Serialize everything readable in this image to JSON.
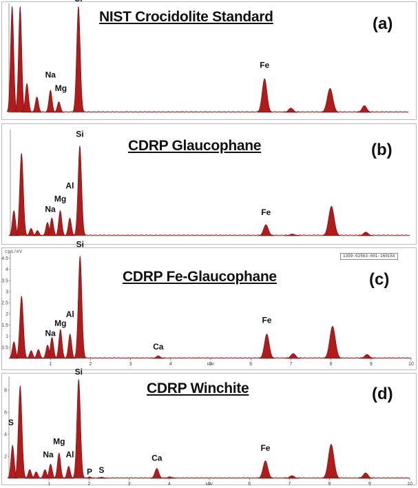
{
  "chart_data": [
    {
      "type": "area",
      "title": "NIST Crocidolite Standard",
      "panel_label": "(a)",
      "xlabel": "",
      "ylabel": "",
      "xlim": [
        0,
        10
      ],
      "ylim": [
        0,
        11
      ],
      "fill_color": "#b01c1c",
      "x_ticks": [],
      "y_ticks": [],
      "peaks": [
        {
          "keV": 0.08,
          "height": 11.0,
          "width": 0.04
        },
        {
          "keV": 0.28,
          "height": 11.0,
          "width": 0.04
        },
        {
          "keV": 0.45,
          "height": 3.0,
          "width": 0.04
        },
        {
          "keV": 0.7,
          "height": 1.6,
          "width": 0.04
        },
        {
          "keV": 1.04,
          "height": 2.3,
          "width": 0.04
        },
        {
          "keV": 1.25,
          "height": 1.1,
          "width": 0.04
        },
        {
          "keV": 1.74,
          "height": 11.0,
          "width": 0.045
        },
        {
          "keV": 6.4,
          "height": 3.5,
          "width": 0.06
        },
        {
          "keV": 7.06,
          "height": 0.45,
          "width": 0.06
        },
        {
          "keV": 8.04,
          "height": 2.5,
          "width": 0.07
        },
        {
          "keV": 8.9,
          "height": 0.7,
          "width": 0.06
        }
      ],
      "element_labels": [
        {
          "text": "Si",
          "keV": 1.74,
          "y": 11.5
        },
        {
          "text": "Na",
          "keV": 1.04,
          "y": 3.6
        },
        {
          "text": "Mg",
          "keV": 1.3,
          "y": 2.2
        },
        {
          "text": "Fe",
          "keV": 6.4,
          "y": 4.6
        }
      ]
    },
    {
      "type": "area",
      "title": "CDRP Glaucophane",
      "panel_label": "(b)",
      "xlabel": "",
      "ylabel": "",
      "xlim": [
        0,
        10
      ],
      "ylim": [
        0,
        7
      ],
      "fill_color": "#b01c1c",
      "x_ticks": [],
      "y_ticks": [],
      "peaks": [
        {
          "keV": 0.09,
          "height": 1.7,
          "width": 0.04
        },
        {
          "keV": 0.28,
          "height": 5.6,
          "width": 0.045
        },
        {
          "keV": 0.52,
          "height": 0.5,
          "width": 0.04
        },
        {
          "keV": 0.68,
          "height": 0.35,
          "width": 0.04
        },
        {
          "keV": 0.93,
          "height": 0.9,
          "width": 0.04
        },
        {
          "keV": 1.04,
          "height": 1.2,
          "width": 0.04
        },
        {
          "keV": 1.25,
          "height": 1.7,
          "width": 0.04
        },
        {
          "keV": 1.49,
          "height": 1.2,
          "width": 0.04
        },
        {
          "keV": 1.74,
          "height": 6.1,
          "width": 0.045
        },
        {
          "keV": 6.4,
          "height": 0.75,
          "width": 0.06
        },
        {
          "keV": 7.06,
          "height": 0.12,
          "width": 0.06
        },
        {
          "keV": 8.04,
          "height": 2.0,
          "width": 0.07
        },
        {
          "keV": 8.9,
          "height": 0.25,
          "width": 0.06
        }
      ],
      "element_labels": [
        {
          "text": "Si",
          "keV": 1.74,
          "y": 6.7
        },
        {
          "text": "Al",
          "keV": 1.49,
          "y": 3.2
        },
        {
          "text": "Mg",
          "keV": 1.25,
          "y": 2.3
        },
        {
          "text": "Na",
          "keV": 1.0,
          "y": 1.6
        },
        {
          "text": "Fe",
          "keV": 6.4,
          "y": 1.4
        }
      ]
    },
    {
      "type": "area",
      "title": "CDRP Fe-Glaucophane",
      "panel_label": "(c)",
      "xlabel": "keV",
      "ylabel": "cps/eV",
      "xlim": [
        0,
        10
      ],
      "ylim": [
        0,
        4.7
      ],
      "fill_color": "#b01c1c",
      "x_ticks": [
        1,
        2,
        3,
        4,
        5,
        6,
        7,
        8,
        9,
        10
      ],
      "y_ticks": [
        0.5,
        1.0,
        1.5,
        2.0,
        2.5,
        3.0,
        3.5,
        4.0,
        4.5
      ],
      "legend_text": "1359-02563-001-16015X",
      "peaks": [
        {
          "keV": 0.09,
          "height": 0.75,
          "width": 0.04
        },
        {
          "keV": 0.28,
          "height": 2.8,
          "width": 0.045
        },
        {
          "keV": 0.52,
          "height": 0.35,
          "width": 0.04
        },
        {
          "keV": 0.7,
          "height": 0.4,
          "width": 0.04
        },
        {
          "keV": 0.93,
          "height": 0.6,
          "width": 0.04
        },
        {
          "keV": 1.04,
          "height": 0.95,
          "width": 0.04
        },
        {
          "keV": 1.25,
          "height": 1.3,
          "width": 0.04
        },
        {
          "keV": 1.49,
          "height": 1.1,
          "width": 0.04
        },
        {
          "keV": 1.74,
          "height": 4.6,
          "width": 0.045
        },
        {
          "keV": 3.69,
          "height": 0.12,
          "width": 0.05
        },
        {
          "keV": 6.4,
          "height": 1.1,
          "width": 0.06
        },
        {
          "keV": 7.06,
          "height": 0.22,
          "width": 0.06
        },
        {
          "keV": 8.04,
          "height": 1.45,
          "width": 0.07
        },
        {
          "keV": 8.9,
          "height": 0.18,
          "width": 0.06
        }
      ],
      "element_labels": [
        {
          "text": "Si",
          "keV": 1.74,
          "y": 5.0
        },
        {
          "text": "Al",
          "keV": 1.49,
          "y": 1.85
        },
        {
          "text": "Mg",
          "keV": 1.25,
          "y": 1.45
        },
        {
          "text": "Na",
          "keV": 1.0,
          "y": 1.0
        },
        {
          "text": "Ca",
          "keV": 3.69,
          "y": 0.4
        },
        {
          "text": "Fe",
          "keV": 6.4,
          "y": 1.6
        }
      ]
    },
    {
      "type": "area",
      "title": "CDRP Winchite",
      "panel_label": "(d)",
      "xlabel": "keV",
      "ylabel": "",
      "xlim": [
        0,
        10
      ],
      "ylim": [
        0,
        9
      ],
      "fill_color": "#b01c1c",
      "x_ticks": [
        1,
        2,
        3,
        4,
        5,
        6,
        7,
        8,
        9,
        10
      ],
      "y_ticks": [
        2,
        4,
        6,
        8
      ],
      "peaks": [
        {
          "keV": 0.09,
          "height": 3.0,
          "width": 0.04
        },
        {
          "keV": 0.28,
          "height": 8.4,
          "width": 0.045
        },
        {
          "keV": 0.52,
          "height": 0.8,
          "width": 0.04
        },
        {
          "keV": 0.68,
          "height": 0.6,
          "width": 0.04
        },
        {
          "keV": 0.9,
          "height": 0.8,
          "width": 0.04
        },
        {
          "keV": 1.04,
          "height": 1.3,
          "width": 0.04
        },
        {
          "keV": 1.25,
          "height": 2.3,
          "width": 0.04
        },
        {
          "keV": 1.49,
          "height": 1.1,
          "width": 0.04
        },
        {
          "keV": 1.74,
          "height": 9.0,
          "width": 0.045
        },
        {
          "keV": 2.01,
          "height": 0.15,
          "width": 0.04
        },
        {
          "keV": 2.31,
          "height": 0.12,
          "width": 0.04
        },
        {
          "keV": 3.69,
          "height": 0.9,
          "width": 0.05
        },
        {
          "keV": 4.01,
          "height": 0.15,
          "width": 0.05
        },
        {
          "keV": 6.4,
          "height": 1.6,
          "width": 0.06
        },
        {
          "keV": 7.06,
          "height": 0.25,
          "width": 0.06
        },
        {
          "keV": 8.04,
          "height": 3.1,
          "width": 0.07
        },
        {
          "keV": 8.9,
          "height": 0.5,
          "width": 0.06
        }
      ],
      "element_labels": [
        {
          "text": "Si",
          "keV": 1.74,
          "y": 9.4
        },
        {
          "text": "Mg",
          "keV": 1.25,
          "y": 3.1
        },
        {
          "text": "Na",
          "keV": 0.98,
          "y": 1.9
        },
        {
          "text": "Al",
          "keV": 1.52,
          "y": 1.9
        },
        {
          "text": "Ca",
          "keV": 3.69,
          "y": 1.6
        },
        {
          "text": "Fe",
          "keV": 6.4,
          "y": 2.5
        },
        {
          "text": "P",
          "keV": 2.01,
          "y": 0.35
        },
        {
          "text": "S",
          "keV": 2.31,
          "y": 0.5
        },
        {
          "text": "S",
          "keV": 0.05,
          "y": 4.8
        }
      ]
    }
  ]
}
